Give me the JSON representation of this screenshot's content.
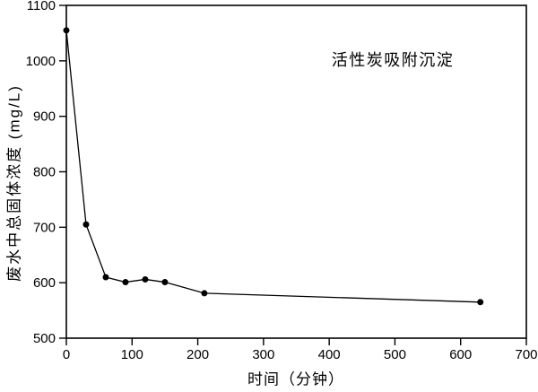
{
  "chart_data": {
    "type": "line",
    "series": [
      {
        "name": "活性炭吸附沉淀",
        "x": [
          0,
          30,
          60,
          90,
          120,
          150,
          210,
          630
        ],
        "y": [
          1055,
          705,
          610,
          601,
          606,
          601,
          581,
          565
        ]
      }
    ],
    "annotation": "活性炭吸附沉淀",
    "xlabel": "时间（分钟）",
    "ylabel": "废水中总固体浓度 (mg/L)",
    "xlim": [
      0,
      700
    ],
    "ylim": [
      500,
      1100
    ],
    "xticks": [
      0,
      100,
      200,
      300,
      400,
      500,
      600,
      700
    ],
    "yticks": [
      500,
      600,
      700,
      800,
      900,
      1000,
      1100
    ],
    "grid": false,
    "legend_position": "none",
    "marker": "circle",
    "marker_size": 3.5,
    "axis_color": "#000000",
    "line_color": "#000000",
    "marker_color": "#000000",
    "background_color": "#ffffff"
  }
}
